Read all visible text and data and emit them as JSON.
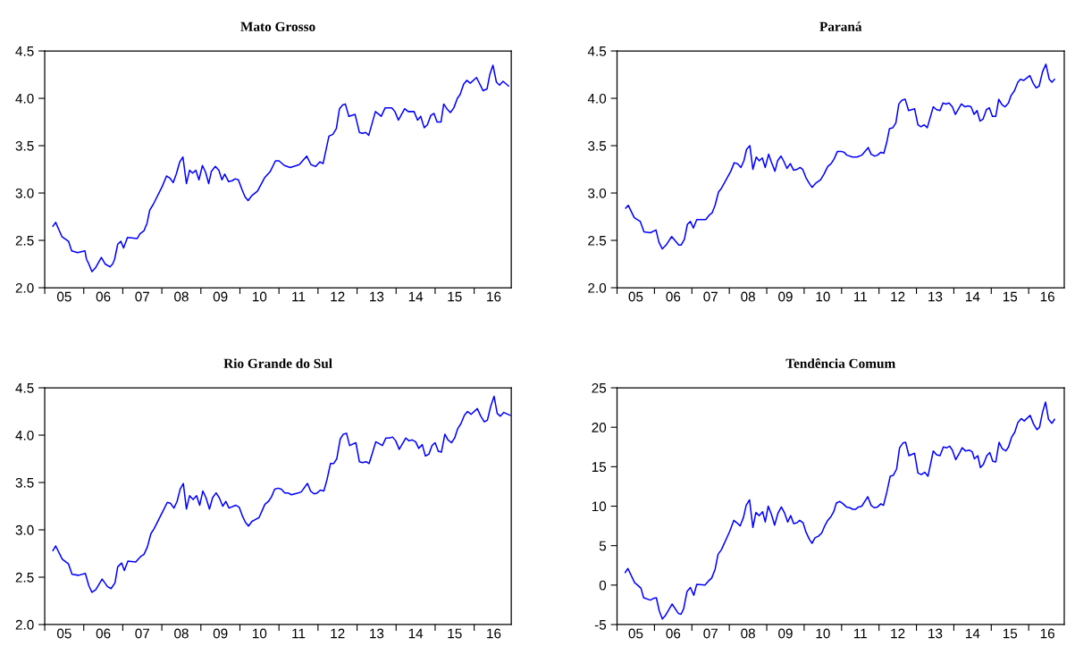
{
  "chart_data": [
    {
      "type": "line",
      "title": "Mato Grosso",
      "color": "#0000ff",
      "x": [
        4.71,
        4.78,
        4.94,
        5.11,
        5.19,
        5.34,
        5.53,
        5.57,
        5.62,
        5.71,
        5.8,
        5.95,
        6.05,
        6.17,
        6.24,
        6.29,
        6.37,
        6.45,
        6.52,
        6.62,
        6.87,
        6.94,
        7.04,
        7.12,
        7.19,
        7.28,
        7.51,
        7.62,
        7.7,
        7.79,
        7.87,
        7.96,
        8.04,
        8.13,
        8.21,
        8.29,
        8.37,
        8.45,
        8.54,
        8.62,
        8.7,
        8.77,
        8.87,
        8.96,
        9.04,
        9.11,
        9.21,
        9.3,
        9.38,
        9.46,
        9.55,
        9.63,
        9.71,
        9.8,
        9.95,
        10.13,
        10.28,
        10.41,
        10.5,
        10.64,
        10.79,
        11.02,
        11.21,
        11.32,
        11.44,
        11.55,
        11.63,
        11.78,
        11.88,
        11.97,
        12.05,
        12.13,
        12.2,
        12.29,
        12.45,
        12.56,
        12.64,
        12.72,
        12.8,
        12.97,
        13.12,
        13.22,
        13.31,
        13.39,
        13.47,
        13.56,
        13.72,
        13.81,
        13.96,
        14.05,
        14.13,
        14.22,
        14.3,
        14.39,
        14.47,
        14.55,
        14.65,
        14.72,
        14.8,
        14.89,
        14.98,
        15.07,
        15.14,
        15.23,
        15.31,
        15.4,
        15.56,
        15.73,
        15.83,
        15.9,
        15.98,
        16.07,
        16.15,
        16.24,
        16.38
      ],
      "values": [
        2.65,
        2.69,
        2.54,
        2.49,
        2.39,
        2.37,
        2.39,
        2.3,
        2.26,
        2.17,
        2.21,
        2.32,
        2.25,
        2.22,
        2.25,
        2.3,
        2.46,
        2.49,
        2.42,
        2.53,
        2.52,
        2.57,
        2.6,
        2.68,
        2.82,
        2.88,
        3.07,
        3.18,
        3.16,
        3.11,
        3.2,
        3.33,
        3.38,
        3.1,
        3.24,
        3.21,
        3.24,
        3.14,
        3.29,
        3.22,
        3.1,
        3.23,
        3.28,
        3.24,
        3.14,
        3.2,
        3.12,
        3.13,
        3.15,
        3.14,
        3.04,
        2.96,
        2.92,
        2.97,
        3.02,
        3.16,
        3.23,
        3.34,
        3.34,
        3.29,
        3.27,
        3.3,
        3.39,
        3.3,
        3.28,
        3.33,
        3.31,
        3.6,
        3.62,
        3.68,
        3.89,
        3.93,
        3.94,
        3.81,
        3.83,
        3.64,
        3.63,
        3.64,
        3.61,
        3.86,
        3.81,
        3.9,
        3.9,
        3.9,
        3.86,
        3.77,
        3.89,
        3.86,
        3.86,
        3.77,
        3.81,
        3.69,
        3.72,
        3.82,
        3.84,
        3.75,
        3.75,
        3.94,
        3.89,
        3.85,
        3.9,
        4.0,
        4.04,
        4.15,
        4.19,
        4.16,
        4.22,
        4.08,
        4.1,
        4.25,
        4.35,
        4.17,
        4.14,
        4.18,
        4.13
      ],
      "xlim": [
        4.5,
        16.45
      ],
      "xticks": [
        {
          "value": 4.5,
          "label": null
        },
        {
          "value": 5,
          "label": "05"
        },
        {
          "value": 5.5,
          "label": null
        },
        {
          "value": 6,
          "label": "06"
        },
        {
          "value": 6.5,
          "label": null
        },
        {
          "value": 7,
          "label": "07"
        },
        {
          "value": 7.5,
          "label": null
        },
        {
          "value": 8,
          "label": "08"
        },
        {
          "value": 8.5,
          "label": null
        },
        {
          "value": 9,
          "label": "09"
        },
        {
          "value": 9.5,
          "label": null
        },
        {
          "value": 10,
          "label": "10"
        },
        {
          "value": 10.5,
          "label": null
        },
        {
          "value": 11,
          "label": "11"
        },
        {
          "value": 11.5,
          "label": null
        },
        {
          "value": 12,
          "label": "12"
        },
        {
          "value": 12.5,
          "label": null
        },
        {
          "value": 13,
          "label": "13"
        },
        {
          "value": 13.5,
          "label": null
        },
        {
          "value": 14,
          "label": "14"
        },
        {
          "value": 14.5,
          "label": null
        },
        {
          "value": 15,
          "label": "15"
        },
        {
          "value": 15.5,
          "label": null
        },
        {
          "value": 16,
          "label": "16"
        }
      ],
      "ylim": [
        2.0,
        4.5
      ],
      "yticks": [
        {
          "value": 2,
          "label": "2.0"
        },
        {
          "value": 2.5,
          "label": "2.5"
        },
        {
          "value": 3,
          "label": "3.0"
        },
        {
          "value": 3.5,
          "label": "3.5"
        },
        {
          "value": 4,
          "label": "4.0"
        },
        {
          "value": 4.5,
          "label": "4.5"
        }
      ]
    },
    {
      "type": "line",
      "title": "Paraná",
      "color": "#0000ff",
      "x": [
        4.73,
        4.8,
        4.96,
        5.12,
        5.22,
        5.39,
        5.54,
        5.62,
        5.71,
        5.81,
        5.96,
        6.15,
        6.21,
        6.3,
        6.38,
        6.46,
        6.54,
        6.63,
        6.87,
        6.97,
        7.04,
        7.12,
        7.21,
        7.29,
        7.54,
        7.63,
        7.72,
        7.81,
        7.89,
        7.96,
        8.05,
        8.13,
        8.22,
        8.3,
        8.38,
        8.46,
        8.55,
        8.62,
        8.72,
        8.79,
        8.88,
        8.95,
        9.04,
        9.13,
        9.22,
        9.31,
        9.39,
        9.46,
        9.55,
        9.64,
        9.71,
        9.8,
        9.94,
        10.03,
        10.13,
        10.22,
        10.3,
        10.39,
        10.49,
        10.57,
        10.64,
        10.79,
        10.91,
        11.04,
        11.21,
        11.29,
        11.38,
        11.46,
        11.55,
        11.63,
        11.71,
        11.78,
        11.87,
        11.95,
        12.03,
        12.11,
        12.2,
        12.29,
        12.45,
        12.54,
        12.62,
        12.71,
        12.79,
        12.95,
        13.04,
        13.13,
        13.21,
        13.29,
        13.37,
        13.46,
        13.54,
        13.7,
        13.8,
        13.88,
        13.96,
        14.04,
        14.12,
        14.2,
        14.28,
        14.37,
        14.45,
        14.53,
        14.62,
        14.7,
        14.79,
        14.87,
        14.96,
        15.03,
        15.12,
        15.21,
        15.28,
        15.37,
        15.53,
        15.62,
        15.7,
        15.78,
        15.87,
        15.96,
        16.05,
        16.12,
        16.19
      ],
      "values": [
        2.84,
        2.87,
        2.74,
        2.7,
        2.59,
        2.58,
        2.61,
        2.48,
        2.41,
        2.45,
        2.54,
        2.45,
        2.45,
        2.51,
        2.67,
        2.7,
        2.63,
        2.72,
        2.72,
        2.77,
        2.79,
        2.87,
        3.01,
        3.05,
        3.23,
        3.32,
        3.31,
        3.27,
        3.34,
        3.46,
        3.5,
        3.25,
        3.38,
        3.34,
        3.37,
        3.27,
        3.41,
        3.33,
        3.23,
        3.34,
        3.39,
        3.34,
        3.26,
        3.31,
        3.24,
        3.25,
        3.27,
        3.25,
        3.16,
        3.1,
        3.06,
        3.1,
        3.14,
        3.2,
        3.28,
        3.31,
        3.36,
        3.44,
        3.44,
        3.43,
        3.4,
        3.38,
        3.38,
        3.4,
        3.48,
        3.41,
        3.39,
        3.4,
        3.43,
        3.42,
        3.54,
        3.68,
        3.69,
        3.74,
        3.94,
        3.98,
        3.99,
        3.87,
        3.89,
        3.72,
        3.7,
        3.72,
        3.69,
        3.91,
        3.88,
        3.87,
        3.95,
        3.94,
        3.95,
        3.91,
        3.83,
        3.94,
        3.91,
        3.92,
        3.91,
        3.83,
        3.87,
        3.76,
        3.78,
        3.88,
        3.9,
        3.81,
        3.81,
        3.99,
        3.93,
        3.91,
        3.95,
        4.03,
        4.08,
        4.17,
        4.2,
        4.19,
        4.24,
        4.16,
        4.11,
        4.13,
        4.28,
        4.36,
        4.2,
        4.17,
        4.2
      ],
      "xlim": [
        4.5,
        16.45
      ],
      "xticks": [
        {
          "value": 4.5,
          "label": null
        },
        {
          "value": 5,
          "label": "05"
        },
        {
          "value": 5.5,
          "label": null
        },
        {
          "value": 6,
          "label": "06"
        },
        {
          "value": 6.5,
          "label": null
        },
        {
          "value": 7,
          "label": "07"
        },
        {
          "value": 7.5,
          "label": null
        },
        {
          "value": 8,
          "label": "08"
        },
        {
          "value": 8.5,
          "label": null
        },
        {
          "value": 9,
          "label": "09"
        },
        {
          "value": 9.5,
          "label": null
        },
        {
          "value": 10,
          "label": "10"
        },
        {
          "value": 10.5,
          "label": null
        },
        {
          "value": 11,
          "label": "11"
        },
        {
          "value": 11.5,
          "label": null
        },
        {
          "value": 12,
          "label": "12"
        },
        {
          "value": 12.5,
          "label": null
        },
        {
          "value": 13,
          "label": "13"
        },
        {
          "value": 13.5,
          "label": null
        },
        {
          "value": 14,
          "label": "14"
        },
        {
          "value": 14.5,
          "label": null
        },
        {
          "value": 15,
          "label": "15"
        },
        {
          "value": 15.5,
          "label": null
        },
        {
          "value": 16,
          "label": "16"
        }
      ],
      "ylim": [
        2.0,
        4.5
      ],
      "yticks": [
        {
          "value": 2,
          "label": "2.0"
        },
        {
          "value": 2.5,
          "label": "2.5"
        },
        {
          "value": 3,
          "label": "3.0"
        },
        {
          "value": 3.5,
          "label": "3.5"
        },
        {
          "value": 4,
          "label": "4.0"
        },
        {
          "value": 4.5,
          "label": "4.5"
        }
      ]
    },
    {
      "type": "line",
      "title": "Rio Grande do Sul",
      "color": "#0000ff",
      "x": [
        4.71,
        4.78,
        4.95,
        5.11,
        5.2,
        5.37,
        5.54,
        5.63,
        5.71,
        5.81,
        5.97,
        6.11,
        6.2,
        6.3,
        6.37,
        6.47,
        6.54,
        6.63,
        6.83,
        6.96,
        7.04,
        7.13,
        7.22,
        7.3,
        7.53,
        7.64,
        7.72,
        7.81,
        7.89,
        7.97,
        8.05,
        8.13,
        8.21,
        8.3,
        8.39,
        8.47,
        8.55,
        8.63,
        8.72,
        8.8,
        8.89,
        8.97,
        9.06,
        9.14,
        9.22,
        9.39,
        9.48,
        9.56,
        9.64,
        9.72,
        9.81,
        9.9,
        9.99,
        10.14,
        10.23,
        10.31,
        10.39,
        10.48,
        10.56,
        10.65,
        10.73,
        10.82,
        10.9,
        10.99,
        11.07,
        11.23,
        11.31,
        11.4,
        11.48,
        11.56,
        11.65,
        11.73,
        11.82,
        11.9,
        11.98,
        12.07,
        12.15,
        12.23,
        12.31,
        12.47,
        12.56,
        12.64,
        12.73,
        12.81,
        12.98,
        13.07,
        13.15,
        13.24,
        13.32,
        13.41,
        13.49,
        13.58,
        13.75,
        13.83,
        13.91,
        14.0,
        14.08,
        14.17,
        14.25,
        14.34,
        14.42,
        14.5,
        14.58,
        14.66,
        14.75,
        14.83,
        14.92,
        15.0,
        15.08,
        15.16,
        15.25,
        15.33,
        15.42,
        15.58,
        15.67,
        15.76,
        15.84,
        15.92,
        16.01,
        16.09,
        16.17,
        16.26,
        16.42
      ],
      "values": [
        2.78,
        2.83,
        2.69,
        2.64,
        2.53,
        2.52,
        2.54,
        2.41,
        2.34,
        2.37,
        2.48,
        2.4,
        2.38,
        2.44,
        2.61,
        2.65,
        2.57,
        2.67,
        2.66,
        2.72,
        2.74,
        2.82,
        2.96,
        3.01,
        3.2,
        3.29,
        3.28,
        3.23,
        3.3,
        3.43,
        3.49,
        3.22,
        3.36,
        3.32,
        3.36,
        3.26,
        3.41,
        3.34,
        3.22,
        3.34,
        3.39,
        3.34,
        3.25,
        3.3,
        3.23,
        3.26,
        3.24,
        3.15,
        3.08,
        3.04,
        3.09,
        3.11,
        3.13,
        3.27,
        3.3,
        3.35,
        3.43,
        3.44,
        3.43,
        3.39,
        3.39,
        3.37,
        3.38,
        3.39,
        3.4,
        3.49,
        3.41,
        3.38,
        3.39,
        3.42,
        3.41,
        3.53,
        3.7,
        3.7,
        3.75,
        3.96,
        4.01,
        4.02,
        3.89,
        3.92,
        3.72,
        3.71,
        3.72,
        3.7,
        3.93,
        3.91,
        3.89,
        3.97,
        3.97,
        3.98,
        3.94,
        3.85,
        3.97,
        3.94,
        3.95,
        3.93,
        3.86,
        3.9,
        3.78,
        3.8,
        3.89,
        3.92,
        3.83,
        3.82,
        4.01,
        3.95,
        3.92,
        3.97,
        4.07,
        4.12,
        4.21,
        4.25,
        4.22,
        4.28,
        4.2,
        4.14,
        4.16,
        4.3,
        4.41,
        4.23,
        4.2,
        4.24,
        4.21
      ],
      "xlim": [
        4.5,
        16.45
      ],
      "xticks": [
        {
          "value": 4.5,
          "label": null
        },
        {
          "value": 5,
          "label": "05"
        },
        {
          "value": 5.5,
          "label": null
        },
        {
          "value": 6,
          "label": "06"
        },
        {
          "value": 6.5,
          "label": null
        },
        {
          "value": 7,
          "label": "07"
        },
        {
          "value": 7.5,
          "label": null
        },
        {
          "value": 8,
          "label": "08"
        },
        {
          "value": 8.5,
          "label": null
        },
        {
          "value": 9,
          "label": "09"
        },
        {
          "value": 9.5,
          "label": null
        },
        {
          "value": 10,
          "label": "10"
        },
        {
          "value": 10.5,
          "label": null
        },
        {
          "value": 11,
          "label": "11"
        },
        {
          "value": 11.5,
          "label": null
        },
        {
          "value": 12,
          "label": "12"
        },
        {
          "value": 12.5,
          "label": null
        },
        {
          "value": 13,
          "label": "13"
        },
        {
          "value": 13.5,
          "label": null
        },
        {
          "value": 14,
          "label": "14"
        },
        {
          "value": 14.5,
          "label": null
        },
        {
          "value": 15,
          "label": "15"
        },
        {
          "value": 15.5,
          "label": null
        },
        {
          "value": 16,
          "label": "16"
        }
      ],
      "ylim": [
        2.0,
        4.5
      ],
      "yticks": [
        {
          "value": 2,
          "label": "2.0"
        },
        {
          "value": 2.5,
          "label": "2.5"
        },
        {
          "value": 3,
          "label": "3.0"
        },
        {
          "value": 3.5,
          "label": "3.5"
        },
        {
          "value": 4,
          "label": "4.0"
        },
        {
          "value": 4.5,
          "label": "4.5"
        }
      ]
    },
    {
      "type": "line",
      "title": "Tendência Comum",
      "color": "#0000ff",
      "x": [
        4.72,
        4.79,
        4.97,
        5.05,
        5.14,
        5.21,
        5.39,
        5.47,
        5.55,
        5.63,
        5.71,
        5.8,
        5.97,
        6.14,
        6.21,
        6.28,
        6.37,
        6.46,
        6.55,
        6.63,
        6.85,
        6.94,
        7.03,
        7.12,
        7.2,
        7.29,
        7.51,
        7.62,
        7.7,
        7.79,
        7.88,
        7.95,
        8.04,
        8.13,
        8.21,
        8.3,
        8.39,
        8.46,
        8.54,
        8.63,
        8.71,
        8.8,
        8.89,
        8.97,
        9.06,
        9.14,
        9.22,
        9.31,
        9.38,
        9.47,
        9.55,
        9.64,
        9.71,
        9.79,
        9.88,
        9.97,
        10.04,
        10.13,
        10.22,
        10.29,
        10.36,
        10.45,
        10.54,
        10.63,
        10.72,
        10.8,
        10.87,
        10.95,
        11.04,
        11.2,
        11.29,
        11.37,
        11.46,
        11.55,
        11.62,
        11.71,
        11.8,
        11.88,
        11.97,
        12.05,
        12.14,
        12.21,
        12.3,
        12.45,
        12.54,
        12.63,
        12.72,
        12.81,
        12.95,
        13.04,
        13.13,
        13.22,
        13.31,
        13.39,
        13.46,
        13.55,
        13.66,
        13.72,
        13.81,
        13.92,
        13.99,
        14.05,
        14.14,
        14.21,
        14.29,
        14.38,
        14.46,
        14.54,
        14.62,
        14.71,
        14.79,
        14.89,
        14.96,
        15.04,
        15.13,
        15.21,
        15.3,
        15.38,
        15.54,
        15.63,
        15.72,
        15.79,
        15.87,
        15.95,
        16.03,
        16.12,
        16.19
      ],
      "values": [
        1.6,
        2.1,
        0.3,
        0.0,
        -0.4,
        -1.6,
        -1.9,
        -1.7,
        -1.6,
        -3.3,
        -4.3,
        -3.8,
        -2.4,
        -3.6,
        -3.7,
        -3.0,
        -0.8,
        -0.3,
        -1.3,
        0.1,
        0.0,
        0.5,
        0.9,
        2.0,
        3.9,
        4.5,
        6.8,
        8.2,
        7.9,
        7.5,
        8.6,
        10.1,
        10.8,
        7.3,
        9.2,
        8.8,
        9.3,
        8.0,
        10.0,
        8.9,
        7.6,
        9.1,
        9.9,
        9.2,
        8.0,
        8.8,
        7.8,
        7.9,
        8.2,
        7.9,
        6.7,
        5.8,
        5.3,
        6.0,
        6.2,
        6.6,
        7.4,
        8.2,
        8.7,
        9.3,
        10.4,
        10.6,
        10.3,
        9.9,
        9.8,
        9.6,
        9.6,
        9.9,
        10.0,
        11.2,
        10.1,
        9.8,
        9.9,
        10.3,
        10.1,
        11.8,
        13.8,
        13.9,
        14.7,
        17.4,
        18.0,
        18.1,
        16.4,
        16.7,
        14.2,
        14.0,
        14.3,
        13.8,
        17.0,
        16.5,
        16.4,
        17.5,
        17.4,
        17.6,
        17.1,
        15.9,
        16.8,
        17.4,
        17.0,
        17.1,
        16.9,
        16.0,
        16.4,
        14.9,
        15.3,
        16.4,
        16.8,
        15.7,
        15.6,
        18.1,
        17.3,
        17.0,
        17.5,
        18.7,
        19.4,
        20.6,
        21.1,
        20.8,
        21.5,
        20.4,
        19.7,
        20.0,
        21.9,
        23.2,
        21.0,
        20.5,
        21.0
      ],
      "xlim": [
        4.5,
        16.45
      ],
      "xticks": [
        {
          "value": 4.5,
          "label": null
        },
        {
          "value": 5,
          "label": "05"
        },
        {
          "value": 5.5,
          "label": null
        },
        {
          "value": 6,
          "label": "06"
        },
        {
          "value": 6.5,
          "label": null
        },
        {
          "value": 7,
          "label": "07"
        },
        {
          "value": 7.5,
          "label": null
        },
        {
          "value": 8,
          "label": "08"
        },
        {
          "value": 8.5,
          "label": null
        },
        {
          "value": 9,
          "label": "09"
        },
        {
          "value": 9.5,
          "label": null
        },
        {
          "value": 10,
          "label": "10"
        },
        {
          "value": 10.5,
          "label": null
        },
        {
          "value": 11,
          "label": "11"
        },
        {
          "value": 11.5,
          "label": null
        },
        {
          "value": 12,
          "label": "12"
        },
        {
          "value": 12.5,
          "label": null
        },
        {
          "value": 13,
          "label": "13"
        },
        {
          "value": 13.5,
          "label": null
        },
        {
          "value": 14,
          "label": "14"
        },
        {
          "value": 14.5,
          "label": null
        },
        {
          "value": 15,
          "label": "15"
        },
        {
          "value": 15.5,
          "label": null
        },
        {
          "value": 16,
          "label": "16"
        }
      ],
      "ylim": [
        -5,
        25
      ],
      "yticks": [
        -5,
        0,
        5,
        10,
        15,
        20,
        25
      ]
    }
  ]
}
